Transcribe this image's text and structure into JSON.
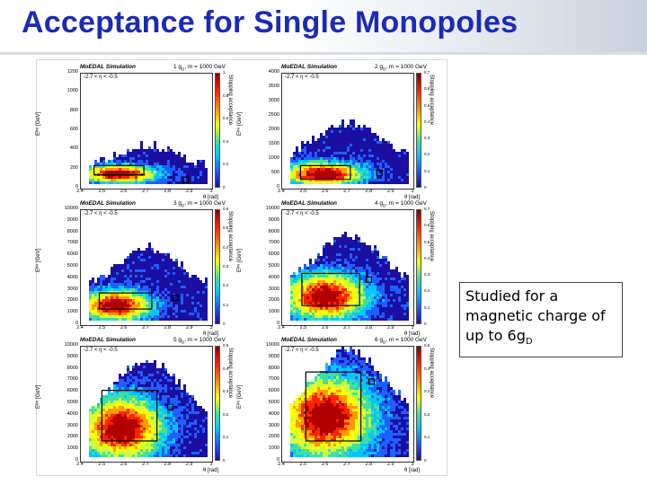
{
  "slide": {
    "title": "Acceptance for Single Monopoles"
  },
  "caption": {
    "line1": "Studied for a",
    "line2": "magnetic charge of",
    "line3_prefix": "up to 6g",
    "line3_sub": "D"
  },
  "common": {
    "sim_label": "MoEDAL Simulation",
    "mass_label": "m = 1000 GeV",
    "eta_label": "-2.7 < η < -0.5",
    "y_axis_title": "Eᵏⁱⁿ [GeV]",
    "x_axis_title": "θ [rad]",
    "colorbar_label": "Stopping acceptance",
    "x_ticks": [
      "2.4",
      "2.5",
      "2.6",
      "2.7",
      "2.8",
      "2.9",
      "3"
    ]
  },
  "panels": [
    {
      "charge": "1 g",
      "charge_sub": "D",
      "y_ticks": [
        "1200",
        "1000",
        "800",
        "600",
        "400",
        "200",
        "0"
      ],
      "cb_ticks": [
        "1",
        "0.8",
        "0.6",
        "0.4",
        "0.2",
        "0"
      ]
    },
    {
      "charge": "2 g",
      "charge_sub": "D",
      "y_ticks": [
        "4000",
        "3500",
        "3000",
        "2500",
        "2000",
        "1500",
        "1000",
        "500",
        "0"
      ],
      "cb_ticks": [
        "0.7",
        "0.6",
        "0.5",
        "0.4",
        "0.3",
        "0.2",
        "0.1",
        "0"
      ]
    },
    {
      "charge": "3 g",
      "charge_sub": "D",
      "y_ticks": [
        "10000",
        "9000",
        "8000",
        "7000",
        "6000",
        "5000",
        "4000",
        "3000",
        "2000",
        "1000",
        "0"
      ],
      "cb_ticks": [
        "0.6",
        "0.5",
        "0.4",
        "0.3",
        "0.2",
        "0.1",
        "0"
      ]
    },
    {
      "charge": "4 g",
      "charge_sub": "D",
      "y_ticks": [
        "10000",
        "9000",
        "8000",
        "7000",
        "6000",
        "5000",
        "4000",
        "3000",
        "2000",
        "1000",
        "0"
      ],
      "cb_ticks": [
        "0.7",
        "0.6",
        "0.5",
        "0.4",
        "0.3",
        "0.2",
        "0.1",
        "0"
      ]
    },
    {
      "charge": "5 g",
      "charge_sub": "D",
      "y_ticks": [
        "10000",
        "9000",
        "8000",
        "7000",
        "6000",
        "5000",
        "4000",
        "3000",
        "2000",
        "1000",
        "0"
      ],
      "cb_ticks": [
        "0.5",
        "0.4",
        "0.3",
        "0.2",
        "0.1",
        "0"
      ]
    },
    {
      "charge": "6 g",
      "charge_sub": "D",
      "y_ticks": [
        "10000",
        "9000",
        "8000",
        "7000",
        "6000",
        "5000",
        "4000",
        "3000",
        "2000",
        "1000",
        "0"
      ],
      "cb_ticks": [
        "0.5",
        "0.4",
        "0.3",
        "0.2",
        "0.1",
        "0"
      ]
    }
  ]
}
